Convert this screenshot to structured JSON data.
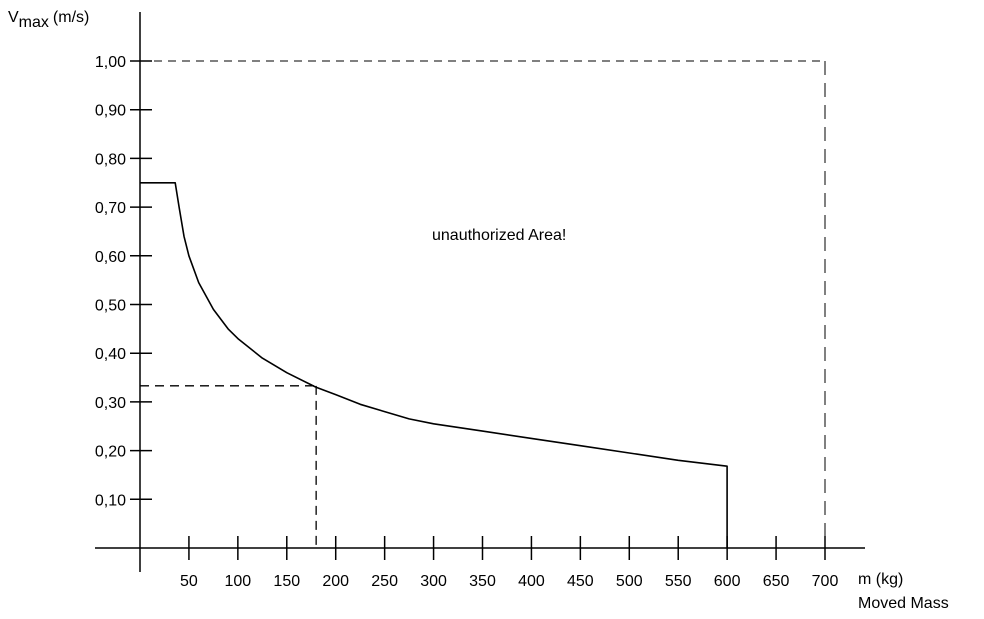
{
  "chart_data": {
    "type": "line",
    "ylabel_main": "V",
    "ylabel_sub": "max",
    "ylabel_unit": "(m/s)",
    "xlabel": "m (kg)",
    "xlabel_sub": "Moved Mass",
    "annotation": "unauthorized Area!",
    "xlim": [
      0,
      700
    ],
    "ylim": [
      0,
      1.0
    ],
    "x_ticks": [
      50,
      100,
      150,
      200,
      250,
      300,
      350,
      400,
      450,
      500,
      550,
      600,
      650,
      700
    ],
    "x_tick_labels": [
      "50",
      "100",
      "150",
      "200",
      "250",
      "300",
      "350",
      "400",
      "450",
      "500",
      "550",
      "600",
      "650",
      "700"
    ],
    "y_ticks": [
      0.1,
      0.2,
      0.3,
      0.4,
      0.5,
      0.6,
      0.7,
      0.8,
      0.9,
      1.0
    ],
    "y_tick_labels": [
      "0,10",
      "0,20",
      "0,30",
      "0,40",
      "0,50",
      "0,60",
      "0,70",
      "0,80",
      "0,90",
      "1,00"
    ],
    "series": [
      {
        "x": [
          0,
          36,
          40,
          45,
          50,
          60,
          75,
          90,
          100,
          125,
          150,
          175,
          180,
          200,
          225,
          250,
          275,
          300,
          350,
          400,
          450,
          500,
          550,
          600,
          600
        ],
        "y": [
          0.75,
          0.75,
          0.7,
          0.64,
          0.6,
          0.545,
          0.49,
          0.45,
          0.43,
          0.39,
          0.36,
          0.335,
          0.33,
          0.315,
          0.295,
          0.28,
          0.265,
          0.255,
          0.24,
          0.225,
          0.21,
          0.195,
          0.18,
          0.168,
          0.0
        ]
      }
    ],
    "limit_box": {
      "x": 700,
      "y": 1.0
    },
    "example_point": {
      "x": 180,
      "y": 0.333
    },
    "grid": false,
    "legend": "none"
  }
}
